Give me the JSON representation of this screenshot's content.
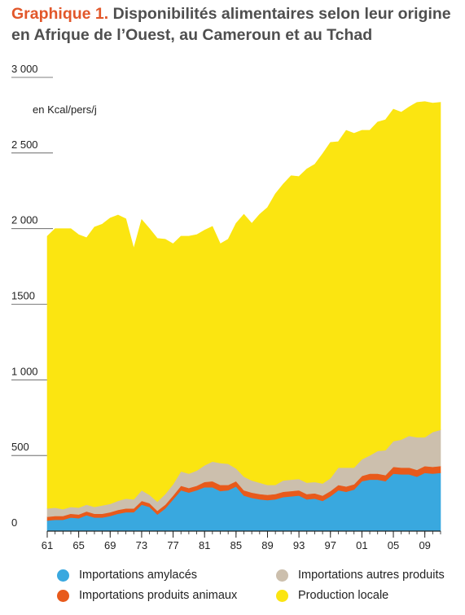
{
  "title": {
    "prefix": "Graphique 1.",
    "text": " Disponibilités alimentaires selon leur origine en Afrique de l’Ouest, au Cameroun et au Tchad"
  },
  "chart_data": {
    "type": "area",
    "stacked": true,
    "unit_label": "en Kcal/pers/j",
    "ylim": [
      0,
      3000
    ],
    "yticks": [
      "0",
      "500",
      "1 000",
      "1500",
      "2 000",
      "2 500",
      "3 000"
    ],
    "ytick_values": [
      0,
      500,
      1000,
      1500,
      2000,
      2500,
      3000
    ],
    "xlim": [
      1961,
      2011
    ],
    "xtick_labels": [
      "61",
      "65",
      "69",
      "73",
      "77",
      "81",
      "85",
      "89",
      "93",
      "97",
      "01",
      "05",
      "09"
    ],
    "xtick_values": [
      1961,
      1965,
      1969,
      1973,
      1977,
      1981,
      1985,
      1989,
      1993,
      1997,
      2001,
      2005,
      2009
    ],
    "x": [
      1961,
      1962,
      1963,
      1964,
      1965,
      1966,
      1967,
      1968,
      1969,
      1970,
      1971,
      1972,
      1973,
      1974,
      1975,
      1976,
      1977,
      1978,
      1979,
      1980,
      1981,
      1982,
      1983,
      1984,
      1985,
      1986,
      1987,
      1988,
      1989,
      1990,
      1991,
      1992,
      1993,
      1994,
      1995,
      1996,
      1997,
      1998,
      1999,
      2000,
      2001,
      2002,
      2003,
      2004,
      2005,
      2006,
      2007,
      2008,
      2009,
      2010,
      2011
    ],
    "series": [
      {
        "name": "Importations amylacés",
        "color": "#39a8df",
        "values": [
          70,
          75,
          75,
          90,
          85,
          105,
          90,
          90,
          100,
          115,
          125,
          125,
          175,
          160,
          110,
          150,
          210,
          270,
          255,
          270,
          290,
          290,
          265,
          270,
          295,
          235,
          220,
          210,
          205,
          210,
          225,
          230,
          235,
          210,
          215,
          200,
          230,
          270,
          260,
          275,
          330,
          340,
          340,
          330,
          380,
          375,
          375,
          360,
          385,
          380,
          385
        ]
      },
      {
        "name": "Importations produits animaux",
        "color": "#e85a1b",
        "values": [
          25,
          25,
          25,
          25,
          25,
          25,
          25,
          25,
          25,
          25,
          25,
          25,
          25,
          25,
          25,
          25,
          25,
          30,
          30,
          30,
          35,
          40,
          40,
          35,
          35,
          35,
          35,
          35,
          35,
          35,
          35,
          35,
          35,
          35,
          35,
          35,
          35,
          35,
          35,
          35,
          35,
          40,
          40,
          40,
          45,
          45,
          45,
          45,
          45,
          45,
          45
        ]
      },
      {
        "name": "Importations autres produits",
        "color": "#ccbfad",
        "values": [
          55,
          55,
          45,
          45,
          45,
          45,
          45,
          55,
          55,
          60,
          65,
          60,
          70,
          55,
          60,
          70,
          75,
          95,
          95,
          100,
          110,
          130,
          145,
          140,
          85,
          90,
          80,
          75,
          65,
          60,
          75,
          75,
          75,
          75,
          75,
          80,
          85,
          115,
          125,
          110,
          110,
          120,
          150,
          165,
          170,
          185,
          210,
          215,
          190,
          230,
          240
        ]
      },
      {
        "name": "Production locale",
        "color": "#fbe511",
        "values": [
          1800,
          1845,
          1855,
          1840,
          1805,
          1765,
          1850,
          1860,
          1890,
          1890,
          1850,
          1660,
          1790,
          1760,
          1740,
          1685,
          1590,
          1555,
          1570,
          1560,
          1555,
          1555,
          1450,
          1485,
          1620,
          1735,
          1700,
          1775,
          1835,
          1925,
          1960,
          2010,
          2000,
          2075,
          2100,
          2180,
          2220,
          2155,
          2230,
          2210,
          2175,
          2150,
          2175,
          2185,
          2195,
          2165,
          2175,
          2215,
          2220,
          2175,
          2165
        ]
      }
    ]
  }
}
